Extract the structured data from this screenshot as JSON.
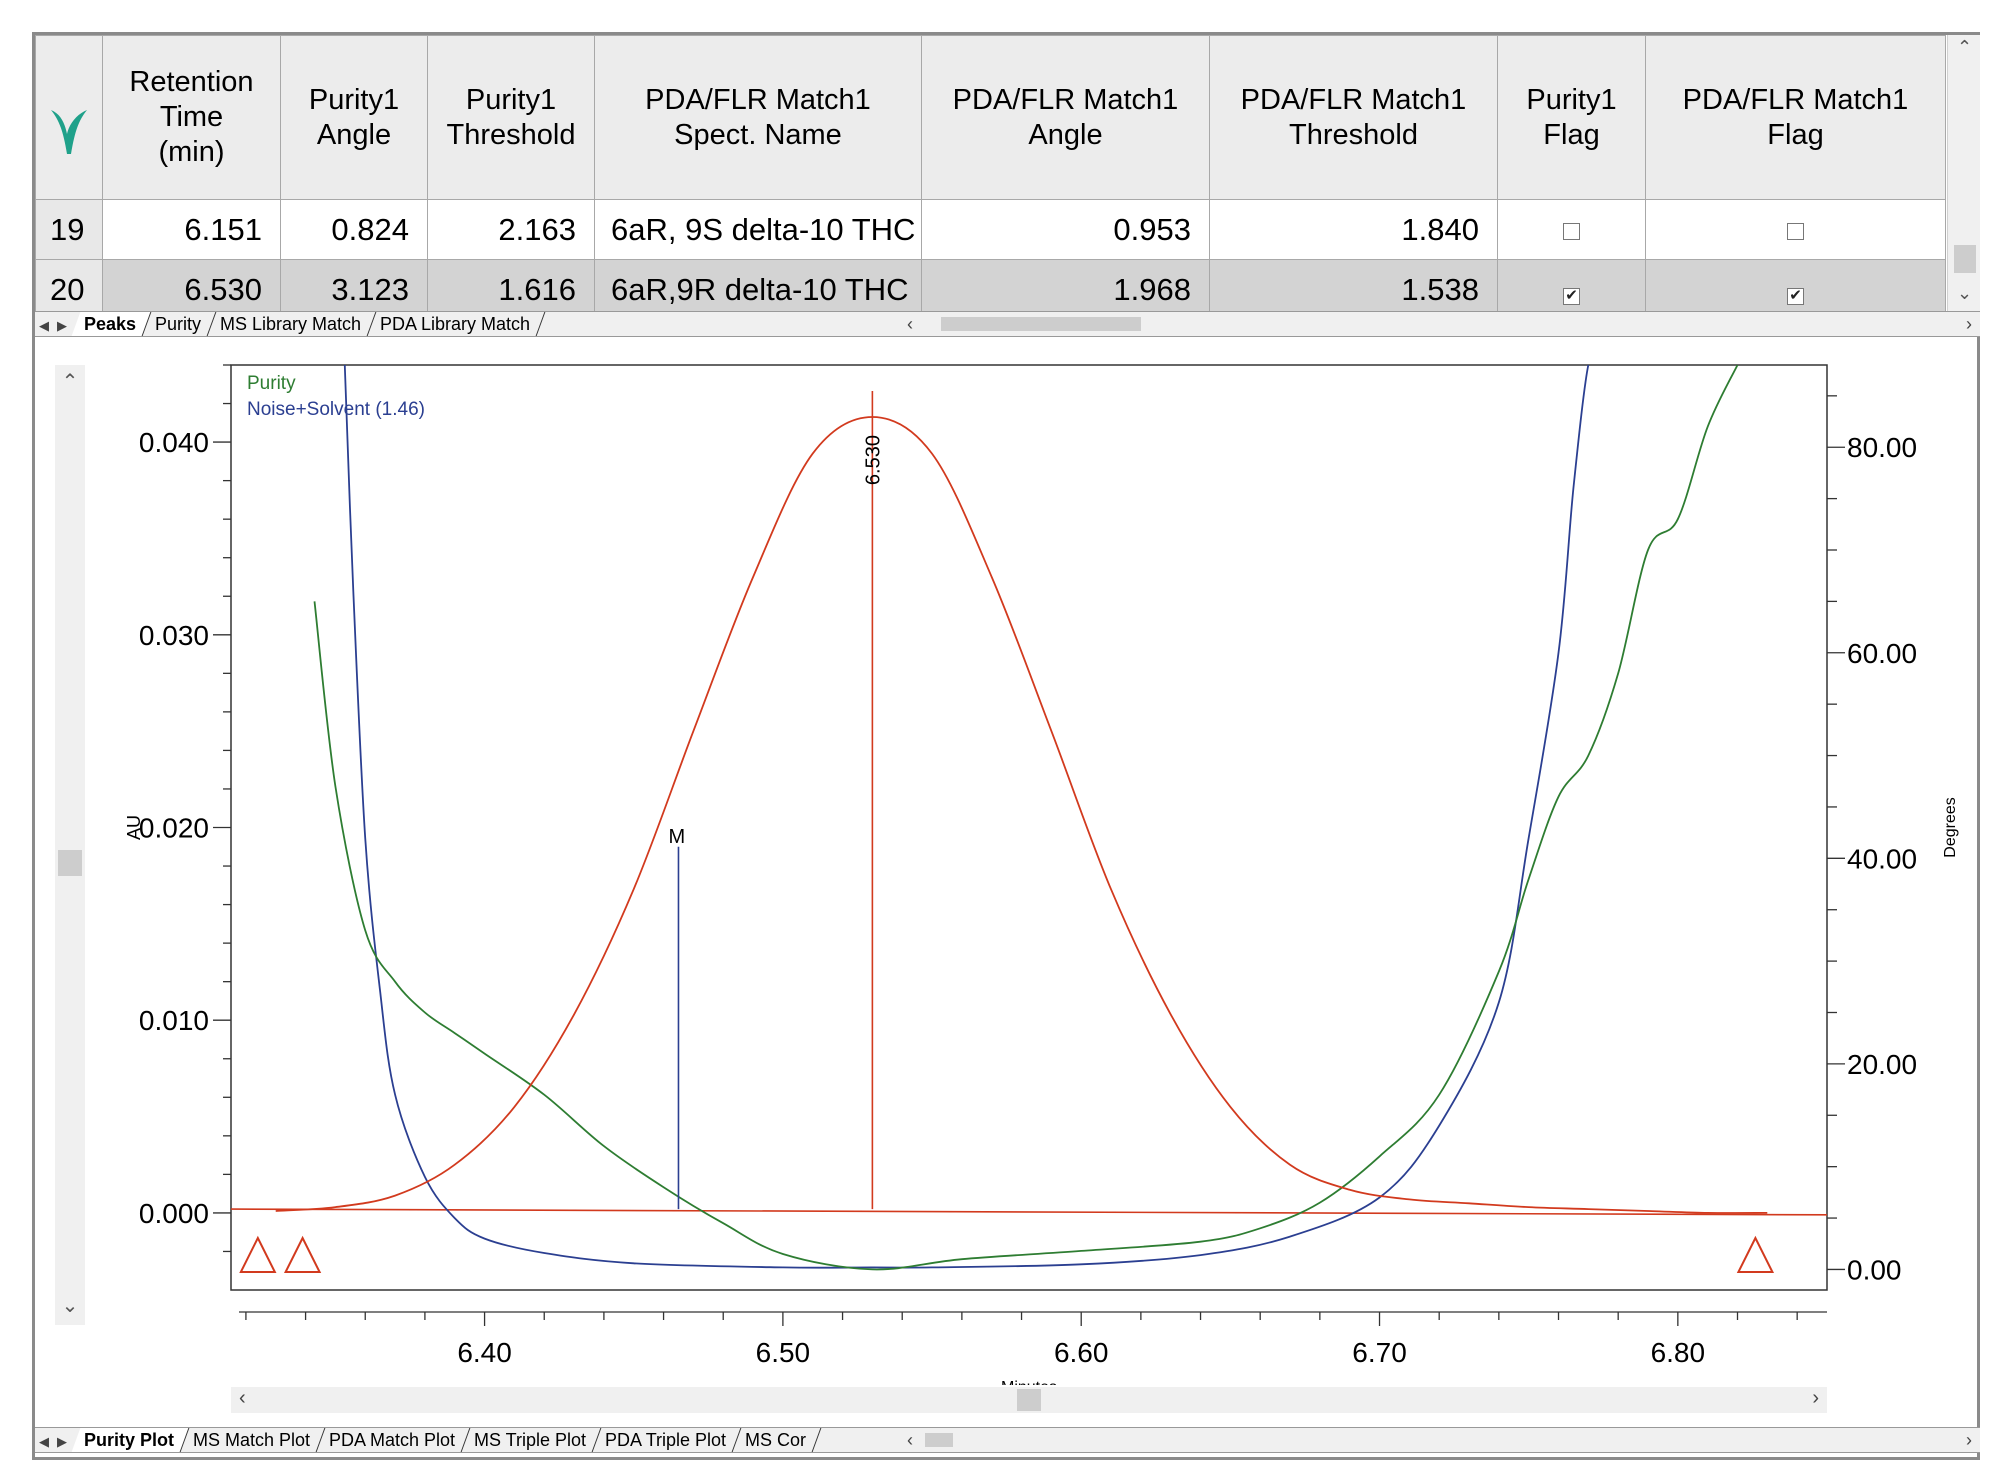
{
  "table": {
    "corner_icon": "waters-empower-logo-icon",
    "headers": [
      "Retention\nTime\n(min)",
      "Purity1\nAngle",
      "Purity1\nThreshold",
      "PDA/FLR Match1\nSpect. Name",
      "PDA/FLR Match1\nAngle",
      "PDA/FLR Match1\nThreshold",
      "Purity1\nFlag",
      "PDA/FLR Match1\nFlag"
    ],
    "rows": [
      {
        "row": "19",
        "rt": "6.151",
        "p_angle": "0.824",
        "p_threshold": "2.163",
        "spect_name": "6aR, 9S delta-10 THC",
        "m_angle": "0.953",
        "m_threshold": "1.840",
        "p_flag": false,
        "m_flag": false,
        "selected": false
      },
      {
        "row": "20",
        "rt": "6.530",
        "p_angle": "3.123",
        "p_threshold": "1.616",
        "spect_name": "6aR,9R delta-10 THC",
        "m_angle": "1.968",
        "m_threshold": "1.538",
        "p_flag": true,
        "m_flag": true,
        "selected": true
      }
    ]
  },
  "top_tabs": [
    "Peaks",
    "Purity",
    "MS Library Match",
    "PDA Library Match"
  ],
  "bottom_tabs": [
    "Purity Plot",
    "MS Match Plot",
    "PDA Match Plot",
    "MS Triple Plot",
    "PDA Triple Plot",
    "MS Cor"
  ],
  "colors": {
    "chromatogram": "#d23a1e",
    "purity": "#2e7d32",
    "noise_solvent": "#2b3f91",
    "baseline": "#d23a1e"
  },
  "chart_data": {
    "type": "line",
    "xlabel": "Minutes",
    "ylabel_left": "AU",
    "ylabel_right": "Degrees",
    "x_ticks": [
      "6.40",
      "6.50",
      "6.60",
      "6.70",
      "6.80"
    ],
    "y_left_ticks": [
      "0.000",
      "0.010",
      "0.020",
      "0.030",
      "0.040"
    ],
    "y_right_ticks": [
      "0.00",
      "20.00",
      "40.00",
      "60.00",
      "80.00"
    ],
    "xlim": [
      6.315,
      6.85
    ],
    "ylim_left": [
      -0.004,
      0.044
    ],
    "ylim_right": [
      -2,
      88
    ],
    "legend": [
      "Purity",
      "Noise+Solvent (1.46)"
    ],
    "peak_label": "6.530",
    "marker_label": "M",
    "series": [
      {
        "name": "Noise+Solvent (1.46)",
        "axis": "right",
        "x": [
          6.353,
          6.356,
          6.36,
          6.365,
          6.37,
          6.38,
          6.39,
          6.4,
          6.42,
          6.45,
          6.5,
          6.53,
          6.55,
          6.6,
          6.64,
          6.67,
          6.7,
          6.72,
          6.74,
          6.75,
          6.76,
          6.765,
          6.77,
          6.774,
          6.79,
          6.82
        ],
        "y": [
          89,
          66,
          42,
          27,
          17,
          9,
          5,
          3,
          1.6,
          0.6,
          0.2,
          0.2,
          0.2,
          0.5,
          1.4,
          3.2,
          7,
          14,
          26,
          42,
          60,
          76,
          88,
          89,
          89,
          89
        ]
      },
      {
        "name": "Purity",
        "axis": "right",
        "x": [
          6.343,
          6.35,
          6.36,
          6.37,
          6.38,
          6.39,
          6.4,
          6.42,
          6.44,
          6.46,
          6.48,
          6.5,
          6.53,
          6.56,
          6.6,
          6.64,
          6.66,
          6.68,
          6.7,
          6.72,
          6.74,
          6.75,
          6.76,
          6.77,
          6.78,
          6.79,
          6.8,
          6.81,
          6.82
        ],
        "y": [
          65,
          47,
          33,
          28,
          25,
          23,
          21,
          17,
          12,
          8,
          4.5,
          1.5,
          0.0,
          1.0,
          1.8,
          2.7,
          4.0,
          6.5,
          11,
          17,
          29,
          38,
          46,
          50,
          58,
          70,
          73,
          82,
          88
        ]
      },
      {
        "name": "",
        "axis": "left",
        "x": [
          6.33,
          6.35,
          6.37,
          6.39,
          6.41,
          6.43,
          6.45,
          6.47,
          6.49,
          6.51,
          6.53,
          6.55,
          6.57,
          6.59,
          6.61,
          6.63,
          6.65,
          6.67,
          6.69,
          6.71,
          6.73,
          6.75,
          6.77,
          6.79,
          6.81,
          6.83
        ],
        "y": [
          0.0001,
          0.0003,
          0.0009,
          0.0025,
          0.0055,
          0.0103,
          0.0168,
          0.025,
          0.033,
          0.0394,
          0.0413,
          0.0394,
          0.033,
          0.025,
          0.0168,
          0.0103,
          0.0055,
          0.0025,
          0.0012,
          0.0007,
          0.0005,
          0.0003,
          0.0002,
          0.0001,
          0.0,
          0.0
        ]
      }
    ],
    "baseline": {
      "x": [
        6.315,
        6.85
      ],
      "y": [
        0.0002,
        -0.0001
      ]
    },
    "peak_marker": {
      "x": 6.53,
      "y": 0.0413
    },
    "m_marker": {
      "x": 6.465,
      "y": 0.019
    },
    "triangles": [
      6.324,
      6.339,
      6.826
    ]
  }
}
